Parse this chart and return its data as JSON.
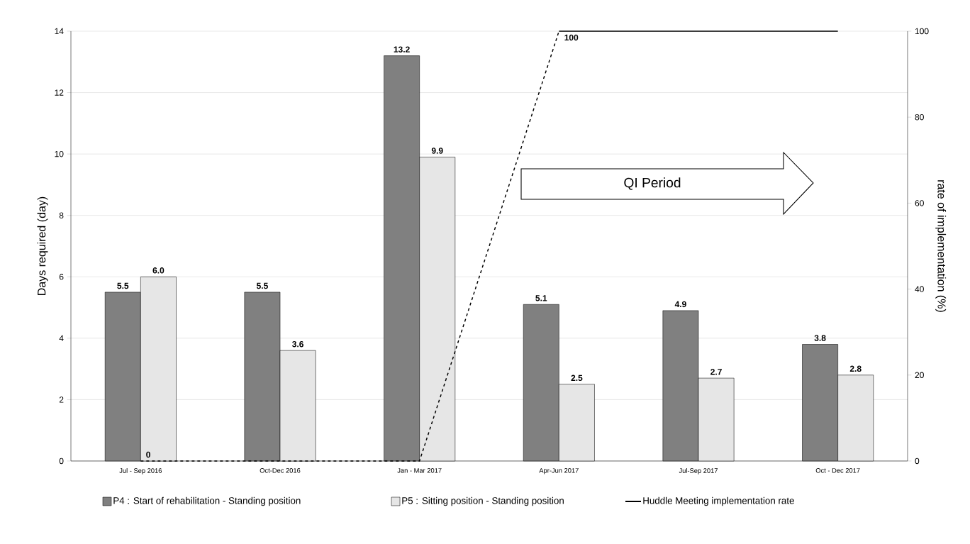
{
  "chart_data": {
    "type": "bar",
    "categories": [
      "Jul - Sep 2016",
      "Oct-Dec 2016",
      "Jan - Mar 2017",
      "Apr-Jun 2017",
      "Jul-Sep 2017",
      "Oct - Dec 2017"
    ],
    "series": [
      {
        "name": "P4 : Start of rehabilitation - Standing position",
        "color": "#808080",
        "values": [
          5.5,
          5.5,
          13.2,
          5.1,
          4.9,
          3.8
        ],
        "value_labels": [
          "5.5",
          "5.5",
          "13.2",
          "5.1",
          "4.9",
          "3.8"
        ]
      },
      {
        "name": "P5 : Sitting position - Standing position",
        "color": "#e6e6e6",
        "values": [
          6.0,
          3.6,
          9.9,
          2.5,
          2.7,
          2.8
        ],
        "value_labels": [
          "6.0",
          "3.6",
          "9.9",
          "2.5",
          "2.7",
          "2.8"
        ]
      },
      {
        "type": "line",
        "axis": "y2",
        "color": "#000000",
        "line_style": "dashed",
        "values": [
          0,
          0,
          0,
          100,
          null,
          null
        ],
        "value_labels": [
          "0",
          null,
          null,
          null,
          null,
          null
        ]
      },
      {
        "type": "line",
        "axis": "y2",
        "name": "Huddle  Meeting  implementation rate",
        "color": "#000000",
        "line_style": "solid",
        "values": [
          null,
          null,
          null,
          100,
          100,
          100
        ],
        "value_labels": [
          null,
          null,
          null,
          "100",
          null,
          null
        ]
      }
    ],
    "ylabel": "Days required (day)",
    "y2label": "rate of implementation (%)",
    "ylim": [
      0,
      14
    ],
    "yticks": [
      0,
      2,
      4,
      6,
      8,
      10,
      12,
      14
    ],
    "y2lim": [
      0,
      100
    ],
    "y2ticks": [
      0,
      20,
      40,
      60,
      80,
      100
    ],
    "grid": "y",
    "legend": "bottom",
    "marker": "none",
    "annotations": [
      "QI Period"
    ]
  }
}
